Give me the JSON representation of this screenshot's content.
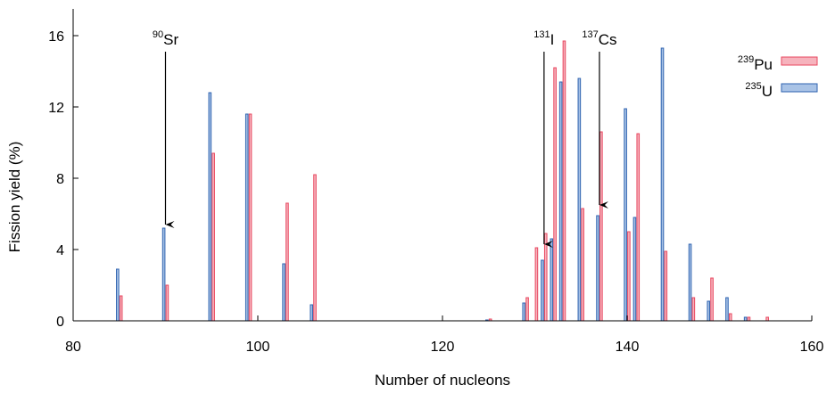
{
  "chart_data": {
    "type": "bar",
    "xlabel": "Number of nucleons",
    "ylabel": "Fission yield (%)",
    "xlim": [
      80,
      160
    ],
    "ylim": [
      0,
      17.5
    ],
    "xticks": [
      80,
      100,
      120,
      140,
      160
    ],
    "yticks": [
      0,
      4,
      8,
      12,
      16
    ],
    "grid": false,
    "legend_position": "top-right",
    "series": [
      {
        "name_sup": "239",
        "name_base": "Pu",
        "color": "#e8475f",
        "fill": "#f6b3bd",
        "x": [
          85,
          90,
          95,
          99,
          103,
          106,
          125,
          129,
          130,
          131,
          132,
          133,
          135,
          137,
          140,
          141,
          144,
          147,
          149,
          151,
          153,
          155
        ],
        "values": [
          1.4,
          2.0,
          9.4,
          11.6,
          6.6,
          8.2,
          0.1,
          1.3,
          4.1,
          4.9,
          14.2,
          15.7,
          6.3,
          10.6,
          5.0,
          10.5,
          3.9,
          1.3,
          2.4,
          0.4,
          0.2,
          0.2
        ]
      },
      {
        "name_sup": "235",
        "name_base": "U",
        "color": "#2f63b0",
        "fill": "#a9c3e6",
        "x": [
          85,
          90,
          95,
          99,
          103,
          106,
          125,
          129,
          131,
          132,
          133,
          135,
          137,
          140,
          141,
          144,
          147,
          149,
          151,
          153
        ],
        "values": [
          2.9,
          5.2,
          12.8,
          11.6,
          3.2,
          0.9,
          0.05,
          1.0,
          3.4,
          4.6,
          13.4,
          13.6,
          5.9,
          11.9,
          5.8,
          15.3,
          4.3,
          1.1,
          1.3,
          0.2
        ]
      }
    ],
    "annotations": [
      {
        "sup": "90",
        "base": "Sr",
        "x": 90,
        "y": 5.2
      },
      {
        "sup": "131",
        "base": "I",
        "x": 131,
        "y": 4.1
      },
      {
        "sup": "137",
        "base": "Cs",
        "x": 137,
        "y": 6.3
      }
    ]
  }
}
